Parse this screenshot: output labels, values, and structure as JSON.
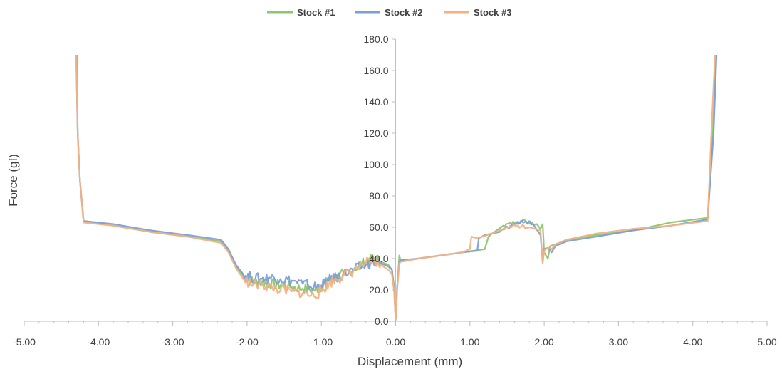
{
  "chart_data": {
    "type": "line",
    "xlabel": "Displacement (mm)",
    "ylabel": "Force (gf)",
    "xlim": [
      -5,
      5
    ],
    "ylim": [
      0,
      180
    ],
    "x_ticks": [
      "-5.00",
      "-4.00",
      "-3.00",
      "-2.00",
      "-1.00",
      "0.00",
      "1.00",
      "2.00",
      "3.00",
      "4.00",
      "5.00"
    ],
    "y_ticks": [
      "0.0",
      "20.0",
      "40.0",
      "60.0",
      "80.0",
      "100.0",
      "120.0",
      "140.0",
      "160.0",
      "180.0"
    ],
    "legend_position": "top-center",
    "grid": false,
    "series": [
      {
        "name": "Stock #1",
        "color": "#8dc66f",
        "points": [
          [
            -4.29,
            170
          ],
          [
            -4.28,
            120
          ],
          [
            -4.25,
            90
          ],
          [
            -4.2,
            64
          ],
          [
            -3.8,
            61
          ],
          [
            -3.3,
            57
          ],
          [
            -2.8,
            54
          ],
          [
            -2.35,
            51
          ],
          [
            -2.25,
            45
          ],
          [
            -2.15,
            35
          ],
          [
            -2.05,
            29
          ],
          [
            -1.95,
            26
          ],
          [
            -1.85,
            25
          ],
          [
            -1.7,
            24
          ],
          [
            -1.55,
            23
          ],
          [
            -1.4,
            22
          ],
          [
            -1.25,
            21
          ],
          [
            -1.1,
            20
          ],
          [
            -1.0,
            22
          ],
          [
            -0.9,
            26
          ],
          [
            -0.8,
            28
          ],
          [
            -0.7,
            30
          ],
          [
            -0.55,
            34
          ],
          [
            -0.4,
            38
          ],
          [
            -0.3,
            40
          ],
          [
            -0.2,
            38
          ],
          [
            -0.1,
            36
          ],
          [
            -0.05,
            33
          ],
          [
            -0.02,
            22
          ],
          [
            0.0,
            1
          ],
          [
            0.02,
            20
          ],
          [
            0.05,
            42
          ],
          [
            0.07,
            38
          ],
          [
            0.3,
            40
          ],
          [
            0.6,
            42
          ],
          [
            0.9,
            44
          ],
          [
            1.2,
            46
          ],
          [
            1.25,
            54
          ],
          [
            1.3,
            56
          ],
          [
            1.45,
            61
          ],
          [
            1.6,
            63
          ],
          [
            1.75,
            64
          ],
          [
            1.9,
            62
          ],
          [
            1.95,
            59
          ],
          [
            1.98,
            62
          ],
          [
            2.0,
            44
          ],
          [
            2.05,
            40
          ],
          [
            2.08,
            48
          ],
          [
            2.15,
            49
          ],
          [
            2.3,
            52
          ],
          [
            2.7,
            55
          ],
          [
            3.2,
            58
          ],
          [
            3.7,
            63
          ],
          [
            4.2,
            66
          ],
          [
            4.27,
            120
          ],
          [
            4.31,
            170
          ]
        ]
      },
      {
        "name": "Stock #2",
        "color": "#7b9fd8",
        "points": [
          [
            -4.3,
            170
          ],
          [
            -4.28,
            120
          ],
          [
            -4.25,
            90
          ],
          [
            -4.2,
            64
          ],
          [
            -3.8,
            62
          ],
          [
            -3.3,
            58
          ],
          [
            -2.8,
            55
          ],
          [
            -2.35,
            52
          ],
          [
            -2.25,
            46
          ],
          [
            -2.15,
            36
          ],
          [
            -2.05,
            30
          ],
          [
            -1.95,
            28
          ],
          [
            -1.8,
            27
          ],
          [
            -1.7,
            28
          ],
          [
            -1.55,
            27
          ],
          [
            -1.4,
            26
          ],
          [
            -1.25,
            24
          ],
          [
            -1.1,
            22
          ],
          [
            -1.0,
            23
          ],
          [
            -0.9,
            26
          ],
          [
            -0.8,
            28
          ],
          [
            -0.7,
            30
          ],
          [
            -0.55,
            33
          ],
          [
            -0.4,
            36
          ],
          [
            -0.3,
            38
          ],
          [
            -0.2,
            37
          ],
          [
            -0.1,
            35
          ],
          [
            -0.05,
            33
          ],
          [
            -0.02,
            20
          ],
          [
            0.0,
            1
          ],
          [
            0.02,
            22
          ],
          [
            0.05,
            38
          ],
          [
            0.07,
            39
          ],
          [
            0.3,
            40
          ],
          [
            0.6,
            42
          ],
          [
            0.9,
            44
          ],
          [
            1.1,
            45
          ],
          [
            1.12,
            53
          ],
          [
            1.2,
            55
          ],
          [
            1.4,
            57
          ],
          [
            1.55,
            61
          ],
          [
            1.7,
            64
          ],
          [
            1.85,
            62
          ],
          [
            1.95,
            55
          ],
          [
            1.98,
            38
          ],
          [
            2.0,
            46
          ],
          [
            2.05,
            47
          ],
          [
            2.1,
            44
          ],
          [
            2.15,
            48
          ],
          [
            2.3,
            51
          ],
          [
            2.7,
            54
          ],
          [
            3.2,
            58
          ],
          [
            3.7,
            61
          ],
          [
            4.2,
            65
          ],
          [
            4.28,
            120
          ],
          [
            4.32,
            170
          ]
        ]
      },
      {
        "name": "Stock #3",
        "color": "#f4b183",
        "points": [
          [
            -4.3,
            170
          ],
          [
            -4.28,
            120
          ],
          [
            -4.25,
            90
          ],
          [
            -4.2,
            63
          ],
          [
            -3.8,
            61
          ],
          [
            -3.3,
            57
          ],
          [
            -2.8,
            54
          ],
          [
            -2.35,
            50
          ],
          [
            -2.25,
            44
          ],
          [
            -2.15,
            34
          ],
          [
            -2.05,
            27
          ],
          [
            -1.95,
            24
          ],
          [
            -1.8,
            23
          ],
          [
            -1.7,
            22
          ],
          [
            -1.55,
            20
          ],
          [
            -1.4,
            19
          ],
          [
            -1.25,
            18
          ],
          [
            -1.1,
            16
          ],
          [
            -1.0,
            19
          ],
          [
            -0.9,
            24
          ],
          [
            -0.8,
            27
          ],
          [
            -0.7,
            29
          ],
          [
            -0.55,
            33
          ],
          [
            -0.4,
            37
          ],
          [
            -0.3,
            38
          ],
          [
            -0.2,
            36
          ],
          [
            -0.1,
            33
          ],
          [
            -0.05,
            30
          ],
          [
            -0.02,
            19
          ],
          [
            0.0,
            1
          ],
          [
            0.02,
            20
          ],
          [
            0.05,
            37
          ],
          [
            0.07,
            38
          ],
          [
            0.3,
            40
          ],
          [
            0.6,
            42
          ],
          [
            0.9,
            44
          ],
          [
            1.0,
            46
          ],
          [
            1.02,
            54
          ],
          [
            1.1,
            53
          ],
          [
            1.3,
            56
          ],
          [
            1.5,
            60
          ],
          [
            1.65,
            61
          ],
          [
            1.8,
            60
          ],
          [
            1.95,
            58
          ],
          [
            1.98,
            37
          ],
          [
            2.0,
            45
          ],
          [
            2.05,
            47
          ],
          [
            2.1,
            46
          ],
          [
            2.15,
            49
          ],
          [
            2.3,
            52
          ],
          [
            2.7,
            56
          ],
          [
            3.2,
            59
          ],
          [
            3.7,
            61
          ],
          [
            4.2,
            64
          ],
          [
            4.25,
            120
          ],
          [
            4.3,
            170
          ]
        ]
      }
    ]
  }
}
